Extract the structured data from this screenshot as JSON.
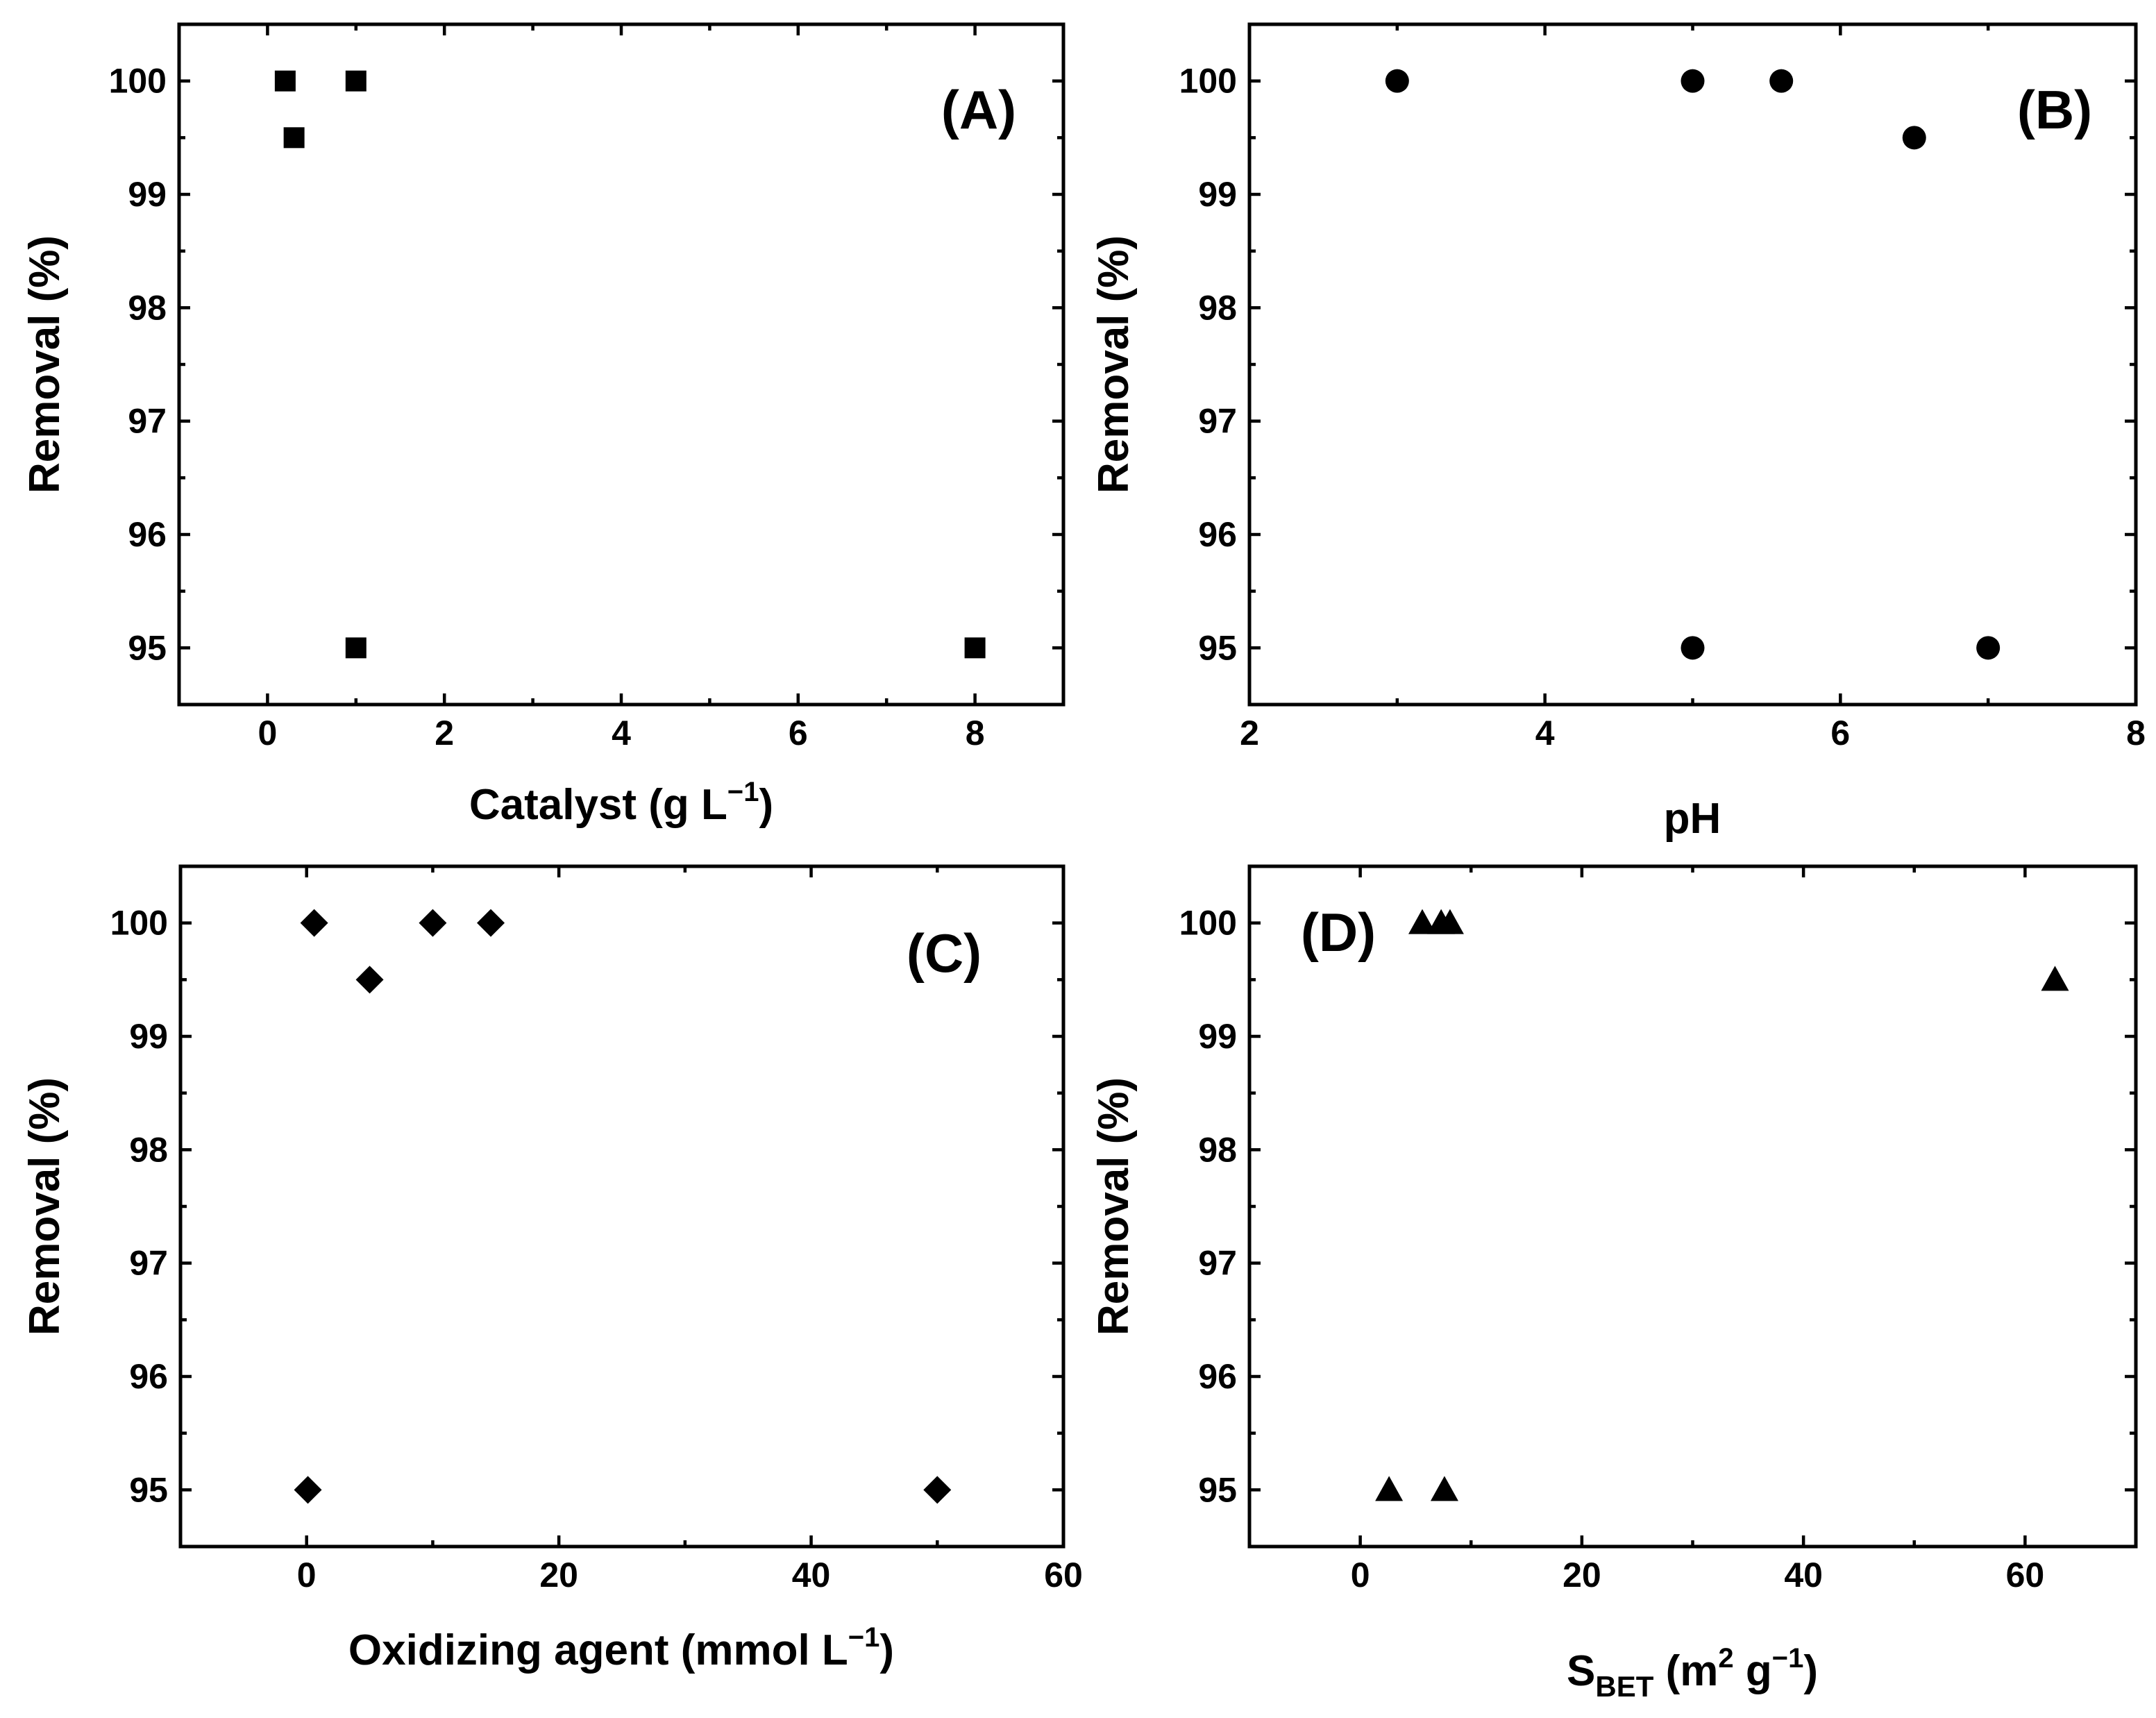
{
  "figure": {
    "panels": [
      {
        "id": "A",
        "label": "(A)",
        "xlabel": {
          "main": "Catalyst (g L",
          "sup": "−1",
          "tail": ")"
        },
        "ylabel": "Removal (%)",
        "marker": "square",
        "marker_icon": "square-marker-icon",
        "xticks": [
          "0",
          "2",
          "4",
          "6",
          "8"
        ],
        "yticks": [
          "95",
          "96",
          "97",
          "98",
          "99",
          "100"
        ]
      },
      {
        "id": "B",
        "label": "(B)",
        "xlabel": {
          "main": "pH",
          "sup": "",
          "tail": ""
        },
        "ylabel": "Removal (%)",
        "marker": "circle",
        "marker_icon": "circle-marker-icon",
        "xticks": [
          "2",
          "4",
          "6",
          "8"
        ],
        "yticks": [
          "95",
          "96",
          "97",
          "98",
          "99",
          "100"
        ]
      },
      {
        "id": "C",
        "label": "(C)",
        "xlabel": {
          "main": "Oxidizing agent (mmol L",
          "sup": "−1",
          "tail": ")"
        },
        "ylabel": "Removal (%)",
        "marker": "diamond",
        "marker_icon": "diamond-marker-icon",
        "xticks": [
          "0",
          "20",
          "40",
          "60"
        ],
        "yticks": [
          "95",
          "96",
          "97",
          "98",
          "99",
          "100"
        ]
      },
      {
        "id": "D",
        "label": "(D)",
        "xlabel": {
          "main": "S",
          "sub": "BET",
          "mid": " (m",
          "sup1": "2",
          "mid2": " g",
          "sup2": "−1",
          "tail": ")"
        },
        "ylabel": "Removal (%)",
        "marker": "triangle",
        "marker_icon": "triangle-marker-icon",
        "xticks": [
          "0",
          "20",
          "40",
          "60"
        ],
        "yticks": [
          "95",
          "96",
          "97",
          "98",
          "99",
          "100"
        ]
      }
    ]
  },
  "chart_data": [
    {
      "type": "scatter",
      "panel": "(A)",
      "title": "",
      "xlabel": "Catalyst (g L⁻¹)",
      "ylabel": "Removal (%)",
      "xlim": [
        -1,
        9
      ],
      "ylim": [
        94.5,
        100.5
      ],
      "xticks": [
        0,
        2,
        4,
        6,
        8
      ],
      "yticks": [
        95,
        96,
        97,
        98,
        99,
        100
      ],
      "minor_x": 1,
      "minor_y": 0.5,
      "grid": false,
      "x": [
        0.2,
        0.3,
        1.0,
        1.0,
        8.0
      ],
      "y": [
        100,
        99.5,
        100,
        95,
        95
      ]
    },
    {
      "type": "scatter",
      "panel": "(B)",
      "title": "",
      "xlabel": "pH",
      "ylabel": "Removal (%)",
      "xlim": [
        2,
        8
      ],
      "ylim": [
        94.5,
        100.5
      ],
      "xticks": [
        2,
        4,
        6,
        8
      ],
      "yticks": [
        95,
        96,
        97,
        98,
        99,
        100
      ],
      "minor_x": 1,
      "minor_y": 0.5,
      "grid": false,
      "x": [
        3.0,
        5.0,
        5.6,
        6.5,
        5.0,
        7.0
      ],
      "y": [
        100,
        100,
        100,
        99.5,
        95,
        95
      ]
    },
    {
      "type": "scatter",
      "panel": "(C)",
      "title": "",
      "xlabel": "Oxidizing agent (mmol L⁻¹)",
      "ylabel": "Removal (%)",
      "xlim": [
        -10,
        60
      ],
      "ylim": [
        94.5,
        100.5
      ],
      "xticks": [
        0,
        20,
        40,
        60
      ],
      "yticks": [
        95,
        96,
        97,
        98,
        99,
        100
      ],
      "minor_x": 10,
      "minor_y": 0.5,
      "grid": false,
      "x": [
        0.6,
        5.0,
        10.0,
        14.6,
        0.1,
        50.0
      ],
      "y": [
        100,
        99.5,
        100,
        100,
        95,
        95
      ]
    },
    {
      "type": "scatter",
      "panel": "(D)",
      "title": "",
      "xlabel": "S_BET (m² g⁻¹)",
      "ylabel": "Removal (%)",
      "xlim": [
        -10,
        70
      ],
      "ylim": [
        94.5,
        100.5
      ],
      "xticks": [
        0,
        20,
        40,
        60
      ],
      "yticks": [
        95,
        96,
        97,
        98,
        99,
        100
      ],
      "minor_x": 10,
      "minor_y": 0.5,
      "grid": false,
      "x": [
        5.6,
        7.3,
        8.1,
        62.7,
        2.6,
        7.6
      ],
      "y": [
        100,
        100,
        100,
        99.5,
        95,
        95
      ]
    }
  ]
}
